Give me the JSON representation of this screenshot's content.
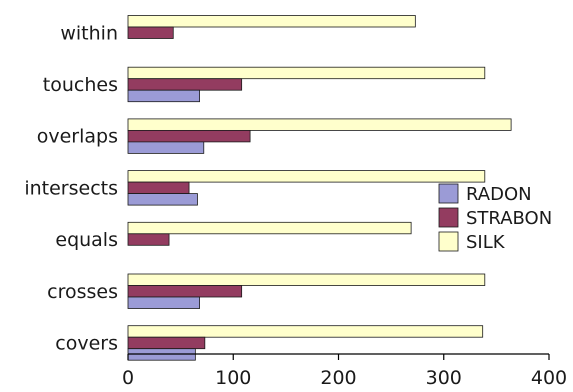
{
  "chart_data": {
    "type": "bar",
    "orientation": "horizontal",
    "categories": [
      "within",
      "touches",
      "overlaps",
      "intersects",
      "equals",
      "crosses",
      "covers"
    ],
    "series": [
      {
        "name": "RADON",
        "color": "#9b9bd6",
        "values": [
          0,
          68,
          72,
          66,
          0,
          68,
          64
        ]
      },
      {
        "name": "STRABON",
        "color": "#933c60",
        "values": [
          43,
          108,
          116,
          58,
          39,
          108,
          73
        ]
      },
      {
        "name": "SILK",
        "color": "#ffffcc",
        "values": [
          273,
          339,
          364,
          339,
          269,
          339,
          337
        ]
      }
    ],
    "xlim": [
      0,
      400
    ],
    "xticks": [
      0,
      100,
      200,
      300,
      400
    ],
    "grid": false,
    "legend_position": "right"
  }
}
